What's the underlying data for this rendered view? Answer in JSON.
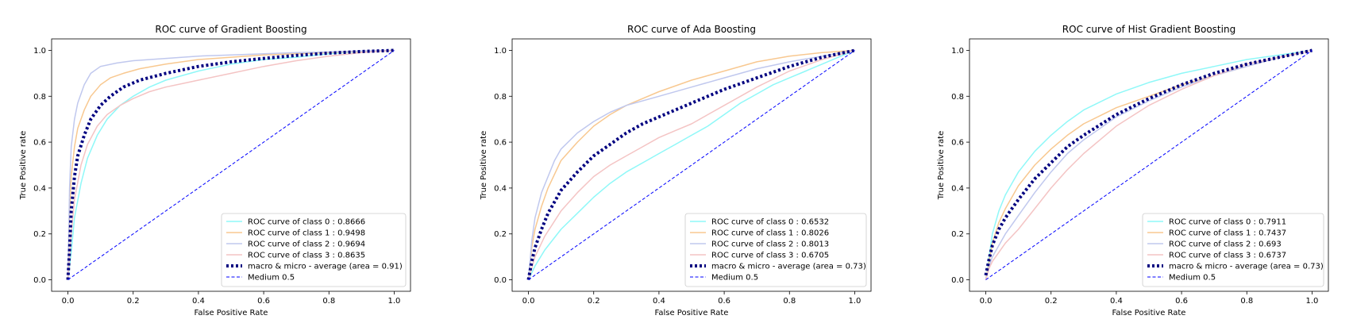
{
  "figure": {
    "background": "#ffffff"
  },
  "chart_data": [
    {
      "type": "line",
      "title": "ROC curve of Gradient Boosting",
      "xlabel": "False Positive Rate",
      "ylabel": "True Positive rate",
      "xlim": [
        -0.05,
        1.05
      ],
      "ylim": [
        -0.05,
        1.05
      ],
      "xticks": [
        "0.0",
        "0.2",
        "0.4",
        "0.6",
        "0.8",
        "1.0"
      ],
      "yticks": [
        "0.0",
        "0.2",
        "0.4",
        "0.6",
        "0.8",
        "1.0"
      ],
      "grid": false,
      "legend_position": "lower-right",
      "series": [
        {
          "name": "ROC curve of class 0 : 0.8666",
          "color": "#8ff8f8",
          "style": "solid",
          "x": [
            0,
            0.01,
            0.02,
            0.04,
            0.06,
            0.09,
            0.12,
            0.16,
            0.2,
            0.25,
            0.3,
            0.4,
            0.5,
            0.6,
            0.7,
            0.8,
            0.9,
            1.0
          ],
          "y": [
            0,
            0.12,
            0.27,
            0.42,
            0.53,
            0.63,
            0.7,
            0.76,
            0.8,
            0.84,
            0.87,
            0.91,
            0.94,
            0.96,
            0.97,
            0.985,
            0.995,
            1.0
          ]
        },
        {
          "name": "ROC curve of class 1 : 0.9498",
          "color": "#f8c890",
          "style": "solid",
          "x": [
            0,
            0.005,
            0.01,
            0.02,
            0.03,
            0.05,
            0.07,
            0.1,
            0.13,
            0.17,
            0.22,
            0.3,
            0.4,
            0.5,
            0.6,
            0.7,
            0.8,
            0.9,
            1.0
          ],
          "y": [
            0,
            0.3,
            0.45,
            0.58,
            0.66,
            0.74,
            0.8,
            0.85,
            0.88,
            0.9,
            0.92,
            0.94,
            0.96,
            0.97,
            0.98,
            0.985,
            0.99,
            0.995,
            1.0
          ]
        },
        {
          "name": "ROC curve of class 2 : 0.9694",
          "color": "#c0c8ee",
          "style": "solid",
          "x": [
            0,
            0.005,
            0.01,
            0.02,
            0.03,
            0.05,
            0.07,
            0.1,
            0.15,
            0.2,
            0.3,
            0.4,
            0.5,
            0.6,
            0.7,
            0.8,
            0.9,
            1.0
          ],
          "y": [
            0,
            0.4,
            0.58,
            0.7,
            0.77,
            0.85,
            0.9,
            0.93,
            0.945,
            0.955,
            0.965,
            0.975,
            0.98,
            0.985,
            0.99,
            0.993,
            0.997,
            1.0
          ]
        },
        {
          "name": "ROC curve of class 3 : 0.8635",
          "color": "#f4c4c4",
          "style": "solid",
          "x": [
            0,
            0.01,
            0.02,
            0.04,
            0.06,
            0.09,
            0.12,
            0.16,
            0.2,
            0.25,
            0.3,
            0.35,
            0.4,
            0.5,
            0.6,
            0.7,
            0.8,
            0.9,
            1.0
          ],
          "y": [
            0,
            0.2,
            0.35,
            0.5,
            0.59,
            0.67,
            0.72,
            0.76,
            0.79,
            0.82,
            0.84,
            0.855,
            0.87,
            0.9,
            0.93,
            0.955,
            0.975,
            0.99,
            1.0
          ]
        },
        {
          "name": "macro & micro - average (area = 0.91)",
          "color": "#000080",
          "style": "dotted",
          "x": [
            0,
            0.005,
            0.01,
            0.02,
            0.03,
            0.05,
            0.07,
            0.1,
            0.13,
            0.17,
            0.22,
            0.3,
            0.4,
            0.5,
            0.6,
            0.7,
            0.8,
            0.9,
            1.0
          ],
          "y": [
            0,
            0.13,
            0.3,
            0.45,
            0.54,
            0.63,
            0.7,
            0.76,
            0.8,
            0.84,
            0.87,
            0.9,
            0.93,
            0.95,
            0.965,
            0.978,
            0.988,
            0.995,
            1.0
          ]
        },
        {
          "name": "Medium 0.5",
          "color": "#0000ff",
          "style": "dashed",
          "x": [
            0,
            1
          ],
          "y": [
            0,
            1
          ]
        }
      ]
    },
    {
      "type": "line",
      "title": "ROC curve of Ada Boosting",
      "xlabel": "False Positive Rate",
      "ylabel": "True Positive rate",
      "xlim": [
        -0.05,
        1.05
      ],
      "ylim": [
        -0.05,
        1.05
      ],
      "xticks": [
        "0.0",
        "0.2",
        "0.4",
        "0.6",
        "0.8",
        "1.0"
      ],
      "yticks": [
        "0.0",
        "0.2",
        "0.4",
        "0.6",
        "0.8",
        "1.0"
      ],
      "grid": false,
      "legend_position": "lower-right",
      "series": [
        {
          "name": "ROC curve of class 0 : 0.6532",
          "color": "#8ff8f8",
          "style": "solid",
          "x": [
            0,
            0.02,
            0.05,
            0.1,
            0.15,
            0.2,
            0.25,
            0.3,
            0.35,
            0.4,
            0.45,
            0.5,
            0.55,
            0.6,
            0.65,
            0.7,
            0.75,
            0.8,
            0.85,
            0.9,
            0.95,
            1.0
          ],
          "y": [
            0,
            0.06,
            0.13,
            0.22,
            0.29,
            0.36,
            0.42,
            0.47,
            0.51,
            0.55,
            0.59,
            0.63,
            0.67,
            0.72,
            0.77,
            0.81,
            0.85,
            0.88,
            0.91,
            0.94,
            0.97,
            1.0
          ]
        },
        {
          "name": "ROC curve of class 1 : 0.8026",
          "color": "#f8c890",
          "style": "solid",
          "x": [
            0,
            0.01,
            0.02,
            0.04,
            0.06,
            0.08,
            0.1,
            0.15,
            0.2,
            0.25,
            0.3,
            0.4,
            0.5,
            0.6,
            0.7,
            0.8,
            0.9,
            1.0
          ],
          "y": [
            0,
            0.14,
            0.22,
            0.32,
            0.4,
            0.46,
            0.52,
            0.6,
            0.67,
            0.72,
            0.76,
            0.82,
            0.87,
            0.91,
            0.95,
            0.975,
            0.99,
            1.0
          ]
        },
        {
          "name": "ROC curve of class 2 : 0.8013",
          "color": "#c0c8ee",
          "style": "solid",
          "x": [
            0,
            0.01,
            0.02,
            0.04,
            0.06,
            0.08,
            0.1,
            0.15,
            0.2,
            0.25,
            0.3,
            0.4,
            0.5,
            0.6,
            0.7,
            0.8,
            0.9,
            1.0
          ],
          "y": [
            0,
            0.17,
            0.27,
            0.38,
            0.45,
            0.52,
            0.57,
            0.64,
            0.69,
            0.73,
            0.76,
            0.8,
            0.84,
            0.88,
            0.92,
            0.95,
            0.975,
            1.0
          ]
        },
        {
          "name": "ROC curve of class 3 : 0.6705",
          "color": "#f4c4c4",
          "style": "solid",
          "x": [
            0,
            0.02,
            0.05,
            0.1,
            0.15,
            0.2,
            0.25,
            0.3,
            0.35,
            0.4,
            0.45,
            0.5,
            0.55,
            0.6,
            0.65,
            0.7,
            0.8,
            0.9,
            1.0
          ],
          "y": [
            0,
            0.1,
            0.19,
            0.3,
            0.38,
            0.45,
            0.5,
            0.54,
            0.58,
            0.62,
            0.65,
            0.68,
            0.72,
            0.76,
            0.8,
            0.84,
            0.91,
            0.96,
            1.0
          ]
        },
        {
          "name": "macro & micro - average (area = 0.73)",
          "color": "#000080",
          "style": "dotted",
          "x": [
            0,
            0.01,
            0.02,
            0.04,
            0.06,
            0.08,
            0.1,
            0.15,
            0.2,
            0.25,
            0.3,
            0.35,
            0.4,
            0.5,
            0.6,
            0.7,
            0.8,
            0.9,
            1.0
          ],
          "y": [
            0,
            0.08,
            0.14,
            0.22,
            0.29,
            0.34,
            0.39,
            0.47,
            0.54,
            0.59,
            0.64,
            0.68,
            0.71,
            0.77,
            0.83,
            0.88,
            0.93,
            0.97,
            1.0
          ]
        },
        {
          "name": "Medium 0.5",
          "color": "#0000ff",
          "style": "dashed",
          "x": [
            0,
            1
          ],
          "y": [
            0,
            1
          ]
        }
      ]
    },
    {
      "type": "line",
      "title": "ROC curve of Hist Gradient Boosting",
      "xlabel": "False Positive Rate",
      "ylabel": "True Positive rate",
      "xlim": [
        -0.05,
        1.05
      ],
      "ylim": [
        -0.05,
        1.05
      ],
      "xticks": [
        "0.0",
        "0.2",
        "0.4",
        "0.6",
        "0.8",
        "1.0"
      ],
      "yticks": [
        "0.0",
        "0.2",
        "0.4",
        "0.6",
        "0.8",
        "1.0"
      ],
      "grid": false,
      "legend_position": "lower-right",
      "series": [
        {
          "name": "ROC curve of class 0 : 0.7911",
          "color": "#8ff8f8",
          "style": "solid",
          "x": [
            0,
            0.01,
            0.02,
            0.04,
            0.06,
            0.08,
            0.1,
            0.15,
            0.2,
            0.25,
            0.3,
            0.4,
            0.5,
            0.6,
            0.7,
            0.8,
            0.9,
            1.0
          ],
          "y": [
            0,
            0.1,
            0.2,
            0.3,
            0.37,
            0.42,
            0.47,
            0.56,
            0.63,
            0.69,
            0.74,
            0.81,
            0.86,
            0.9,
            0.93,
            0.96,
            0.98,
            1.0
          ]
        },
        {
          "name": "ROC curve of class 1 : 0.7437",
          "color": "#f8c890",
          "style": "solid",
          "x": [
            0,
            0.01,
            0.02,
            0.04,
            0.06,
            0.08,
            0.1,
            0.15,
            0.2,
            0.25,
            0.3,
            0.4,
            0.5,
            0.6,
            0.7,
            0.8,
            0.9,
            1.0
          ],
          "y": [
            0,
            0.08,
            0.16,
            0.25,
            0.31,
            0.36,
            0.41,
            0.5,
            0.57,
            0.63,
            0.68,
            0.75,
            0.8,
            0.85,
            0.89,
            0.93,
            0.97,
            1.0
          ]
        },
        {
          "name": "ROC curve of class 2 : 0.693",
          "color": "#c0c8ee",
          "style": "solid",
          "x": [
            0,
            0.01,
            0.02,
            0.04,
            0.06,
            0.08,
            0.1,
            0.15,
            0.2,
            0.25,
            0.3,
            0.4,
            0.5,
            0.6,
            0.7,
            0.8,
            0.9,
            1.0
          ],
          "y": [
            0,
            0.06,
            0.1,
            0.15,
            0.2,
            0.24,
            0.28,
            0.38,
            0.47,
            0.55,
            0.61,
            0.71,
            0.78,
            0.84,
            0.89,
            0.93,
            0.97,
            1.0
          ]
        },
        {
          "name": "ROC curve of class 3 : 0.6737",
          "color": "#f4c4c4",
          "style": "solid",
          "x": [
            0,
            0.01,
            0.02,
            0.04,
            0.06,
            0.08,
            0.1,
            0.15,
            0.2,
            0.25,
            0.3,
            0.4,
            0.5,
            0.6,
            0.7,
            0.8,
            0.9,
            1.0
          ],
          "y": [
            0,
            0.05,
            0.08,
            0.12,
            0.16,
            0.19,
            0.22,
            0.31,
            0.4,
            0.48,
            0.55,
            0.67,
            0.76,
            0.83,
            0.89,
            0.94,
            0.97,
            1.0
          ]
        },
        {
          "name": "macro & micro - average (area = 0.73)",
          "color": "#000080",
          "style": "dotted",
          "x": [
            0,
            0.01,
            0.02,
            0.04,
            0.06,
            0.08,
            0.1,
            0.15,
            0.2,
            0.25,
            0.3,
            0.4,
            0.5,
            0.6,
            0.7,
            0.8,
            0.9,
            1.0
          ],
          "y": [
            0.02,
            0.09,
            0.15,
            0.22,
            0.27,
            0.31,
            0.35,
            0.44,
            0.51,
            0.58,
            0.63,
            0.72,
            0.79,
            0.85,
            0.9,
            0.94,
            0.97,
            1.0
          ]
        },
        {
          "name": "Medium 0.5",
          "color": "#0000ff",
          "style": "dashed",
          "x": [
            0,
            1
          ],
          "y": [
            0,
            1
          ]
        }
      ]
    }
  ]
}
